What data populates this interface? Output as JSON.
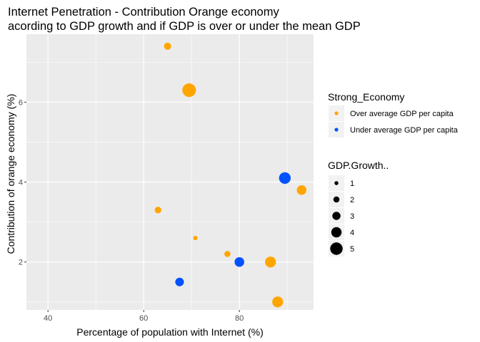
{
  "chart_data": {
    "type": "scatter",
    "title_lines": [
      "Internet Penetration - Contribution Orange economy",
      "acording to GDP growth and if GDP is over or under the mean GDP"
    ],
    "xlabel": "Percentage of population with Internet (%)",
    "ylabel": "Contribution of orange economy (%)",
    "xlim": [
      35.5,
      95.5
    ],
    "ylim": [
      0.8,
      7.7
    ],
    "x_ticks": [
      40,
      60,
      80
    ],
    "y_ticks": [
      2,
      4,
      6
    ],
    "grid": true,
    "legend_placement": "right",
    "colors": {
      "panel": "#ebebeb",
      "grid": "#ffffff",
      "over": "#ffa500",
      "under": "#0052ff",
      "size_key": "#000000"
    },
    "legends": {
      "color": {
        "title": "Strong_Economy",
        "entries": [
          {
            "label": "Over average GDP per capita",
            "key": "over"
          },
          {
            "label": "Under average GDP per capita",
            "key": "under"
          }
        ]
      },
      "size": {
        "title": "GDP.Growth..",
        "entries": [
          {
            "label": "1",
            "value": 1
          },
          {
            "label": "2",
            "value": 2
          },
          {
            "label": "3",
            "value": 3
          },
          {
            "label": "4",
            "value": 4
          },
          {
            "label": "5",
            "value": 5
          }
        ]
      }
    },
    "points": [
      {
        "x": 65.0,
        "y": 7.4,
        "size": 2.0,
        "group": "over"
      },
      {
        "x": 69.5,
        "y": 6.3,
        "size": 4.6,
        "group": "over"
      },
      {
        "x": 89.5,
        "y": 4.1,
        "size": 3.8,
        "group": "under"
      },
      {
        "x": 93.0,
        "y": 3.8,
        "size": 3.0,
        "group": "over"
      },
      {
        "x": 63.0,
        "y": 3.3,
        "size": 1.8,
        "group": "over"
      },
      {
        "x": 70.8,
        "y": 2.6,
        "size": 0.9,
        "group": "over"
      },
      {
        "x": 77.5,
        "y": 2.2,
        "size": 1.6,
        "group": "over"
      },
      {
        "x": 80.0,
        "y": 2.0,
        "size": 3.0,
        "group": "under"
      },
      {
        "x": 86.5,
        "y": 2.0,
        "size": 3.5,
        "group": "over"
      },
      {
        "x": 67.5,
        "y": 1.5,
        "size": 2.6,
        "group": "under"
      },
      {
        "x": 88.0,
        "y": 1.0,
        "size": 3.5,
        "group": "over"
      }
    ]
  }
}
